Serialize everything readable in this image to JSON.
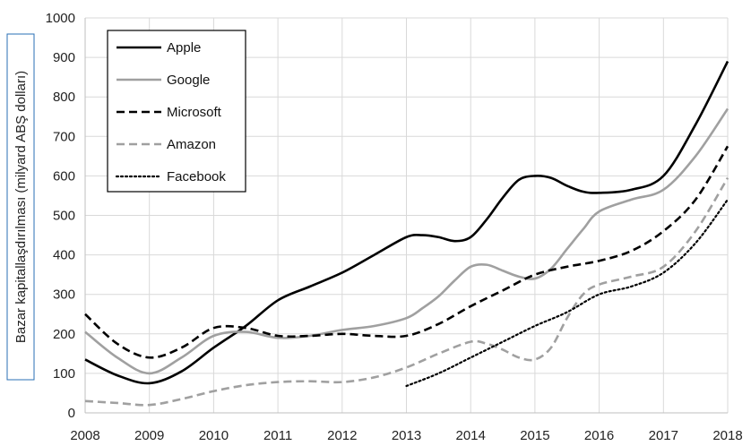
{
  "chart_data": {
    "type": "line",
    "title": "",
    "xlabel": "",
    "ylabel": "Bazar kapitallaşdırılması (milyard ABŞ dolları)",
    "xlim": [
      2008,
      2018
    ],
    "ylim": [
      0,
      1000
    ],
    "x_ticks": [
      "2008",
      "2009",
      "2010",
      "2011",
      "2012",
      "2013",
      "2014",
      "2015",
      "2016",
      "2017",
      "2018"
    ],
    "y_ticks": [
      "0",
      "100",
      "200",
      "300",
      "400",
      "500",
      "600",
      "700",
      "800",
      "900",
      "1000"
    ],
    "grid": true,
    "legend_position": "top-left",
    "series": [
      {
        "name": "Apple",
        "color": "#000000",
        "dash": "solid",
        "x": [
          2008,
          2008.5,
          2009,
          2009.5,
          2010,
          2010.5,
          2011,
          2011.5,
          2012,
          2012.5,
          2013,
          2013.25,
          2013.5,
          2013.75,
          2014,
          2014.25,
          2014.5,
          2014.75,
          2015,
          2015.25,
          2015.5,
          2015.75,
          2016,
          2016.5,
          2017,
          2017.5,
          2018
        ],
        "y": [
          135,
          95,
          75,
          105,
          165,
          220,
          285,
          320,
          355,
          400,
          445,
          450,
          445,
          435,
          445,
          490,
          545,
          590,
          600,
          595,
          575,
          560,
          557,
          565,
          600,
          730,
          890
        ]
      },
      {
        "name": "Google",
        "color": "#a0a0a0",
        "dash": "solid",
        "x": [
          2008,
          2008.5,
          2009,
          2009.5,
          2010,
          2010.5,
          2011,
          2011.5,
          2012,
          2012.5,
          2013,
          2013.25,
          2013.5,
          2013.75,
          2014,
          2014.25,
          2014.5,
          2014.75,
          2015,
          2015.25,
          2015.5,
          2015.75,
          2016,
          2016.5,
          2017,
          2017.5,
          2018
        ],
        "y": [
          205,
          140,
          100,
          140,
          195,
          205,
          190,
          195,
          210,
          220,
          240,
          265,
          295,
          335,
          370,
          375,
          360,
          345,
          340,
          365,
          415,
          465,
          510,
          540,
          565,
          650,
          770
        ]
      },
      {
        "name": "Microsoft",
        "color": "#000000",
        "dash": "dashed",
        "x": [
          2008,
          2008.5,
          2009,
          2009.5,
          2010,
          2010.5,
          2011,
          2011.5,
          2012,
          2012.5,
          2013,
          2013.5,
          2014,
          2014.5,
          2015,
          2015.5,
          2016,
          2016.5,
          2017,
          2017.5,
          2018
        ],
        "y": [
          250,
          175,
          140,
          165,
          215,
          215,
          195,
          195,
          200,
          195,
          195,
          225,
          270,
          310,
          350,
          370,
          385,
          410,
          460,
          540,
          675
        ]
      },
      {
        "name": "Amazon",
        "color": "#a0a0a0",
        "dash": "dashed",
        "x": [
          2008,
          2008.5,
          2009,
          2009.5,
          2010,
          2010.5,
          2011,
          2011.5,
          2012,
          2012.5,
          2013,
          2013.5,
          2014,
          2014.25,
          2014.5,
          2014.75,
          2015,
          2015.25,
          2015.5,
          2015.75,
          2016,
          2016.5,
          2017,
          2017.5,
          2018
        ],
        "y": [
          30,
          25,
          20,
          35,
          55,
          70,
          78,
          80,
          78,
          90,
          115,
          150,
          180,
          175,
          160,
          140,
          135,
          165,
          240,
          300,
          325,
          345,
          370,
          460,
          595
        ]
      },
      {
        "name": "Facebook",
        "color": "#000000",
        "dash": "dotted",
        "x": [
          2013,
          2013.5,
          2014,
          2014.5,
          2015,
          2015.5,
          2016,
          2016.5,
          2017,
          2017.5,
          2018
        ],
        "y": [
          68,
          100,
          140,
          180,
          220,
          255,
          300,
          320,
          355,
          430,
          540
        ]
      }
    ]
  }
}
